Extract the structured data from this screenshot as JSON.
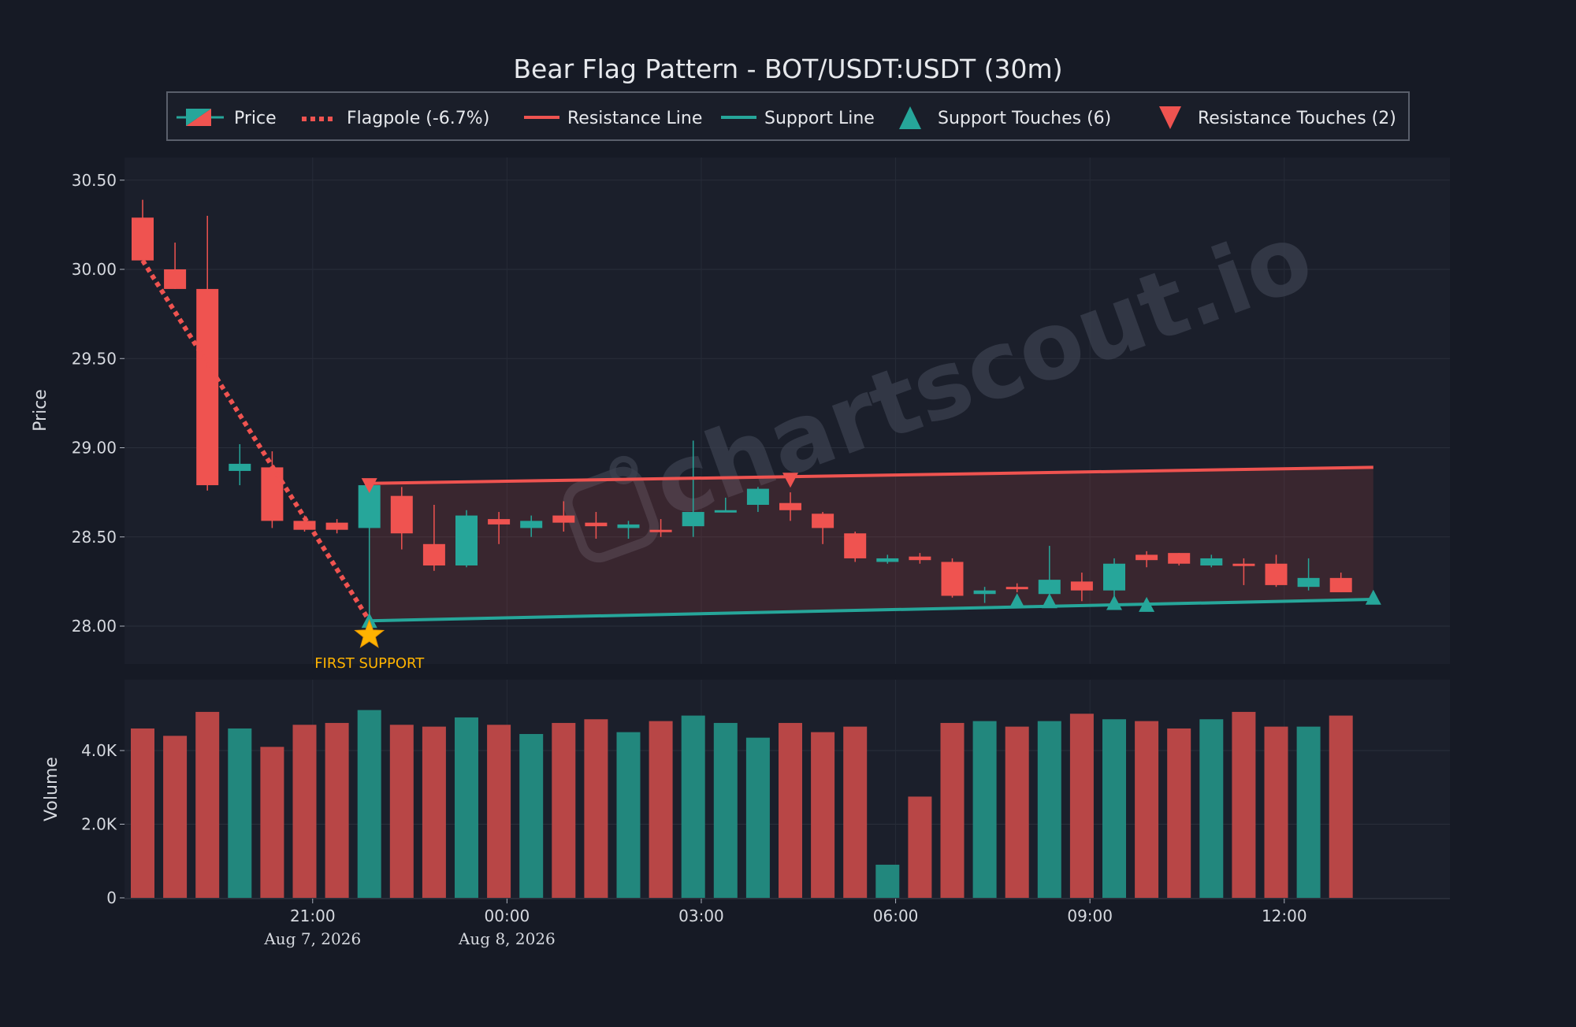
{
  "chart_data": {
    "type": "candlestick",
    "title": "Bear Flag Pattern - BOT/USDT:USDT (30m)",
    "watermark": "chartscout.io",
    "ylabel_price": "Price",
    "ylabel_volume": "Volume",
    "price_ylim": [
      27.8,
      30.6
    ],
    "volume_ylim": [
      0,
      5500
    ],
    "price_ticks": [
      "30.50",
      "30.00",
      "29.50",
      "29.00",
      "28.50",
      "28.00"
    ],
    "volume_ticks": [
      "4.0K",
      "2.0K",
      "0"
    ],
    "x_ticks": [
      {
        "label": "21:00",
        "date": "Aug 7, 2026",
        "index": 5.25
      },
      {
        "label": "00:00",
        "date": "Aug 8, 2026",
        "index": 11.25
      },
      {
        "label": "03:00",
        "date": "",
        "index": 17.25
      },
      {
        "label": "06:00",
        "date": "",
        "index": 23.25
      },
      {
        "label": "09:00",
        "date": "",
        "index": 29.25
      },
      {
        "label": "12:00",
        "date": "",
        "index": 35.25
      }
    ],
    "legend": {
      "price": "Price",
      "flagpole": "Flagpole (-6.7%)",
      "resistance": "Resistance Line",
      "support": "Support Line",
      "support_touches": "Support Touches (6)",
      "resistance_touches": "Resistance Touches (2)"
    },
    "annotation": "FIRST SUPPORT",
    "colors": {
      "up": "#26a69a",
      "down": "#ef5350",
      "up_volume": "#22877d",
      "down_volume": "#b84646",
      "star": "#ffb300",
      "background": "#161a25",
      "panel": "#1b1f2b",
      "text": "#d6d9df"
    },
    "candles": [
      {
        "o": 30.29,
        "h": 30.39,
        "l": 30.05,
        "c": 30.05,
        "v": 4600
      },
      {
        "o": 30.0,
        "h": 30.15,
        "l": 29.89,
        "c": 29.89,
        "v": 4400
      },
      {
        "o": 29.89,
        "h": 30.3,
        "l": 28.76,
        "c": 28.79,
        "v": 5050
      },
      {
        "o": 28.87,
        "h": 29.02,
        "l": 28.79,
        "c": 28.91,
        "v": 4600
      },
      {
        "o": 28.89,
        "h": 28.98,
        "l": 28.55,
        "c": 28.59,
        "v": 4100
      },
      {
        "o": 28.59,
        "h": 28.62,
        "l": 28.53,
        "c": 28.54,
        "v": 4700
      },
      {
        "o": 28.58,
        "h": 28.6,
        "l": 28.52,
        "c": 28.54,
        "v": 4750
      },
      {
        "o": 28.55,
        "h": 28.8,
        "l": 28.03,
        "c": 28.79,
        "v": 5100
      },
      {
        "o": 28.73,
        "h": 28.78,
        "l": 28.43,
        "c": 28.52,
        "v": 4700
      },
      {
        "o": 28.46,
        "h": 28.68,
        "l": 28.31,
        "c": 28.34,
        "v": 4650
      },
      {
        "o": 28.34,
        "h": 28.65,
        "l": 28.33,
        "c": 28.62,
        "v": 4900
      },
      {
        "o": 28.6,
        "h": 28.64,
        "l": 28.46,
        "c": 28.57,
        "v": 4700
      },
      {
        "o": 28.55,
        "h": 28.62,
        "l": 28.5,
        "c": 28.59,
        "v": 4450
      },
      {
        "o": 28.62,
        "h": 28.7,
        "l": 28.53,
        "c": 28.58,
        "v": 4750
      },
      {
        "o": 28.58,
        "h": 28.64,
        "l": 28.49,
        "c": 28.56,
        "v": 4850
      },
      {
        "o": 28.55,
        "h": 28.59,
        "l": 28.49,
        "c": 28.57,
        "v": 4500
      },
      {
        "o": 28.54,
        "h": 28.6,
        "l": 28.5,
        "c": 28.53,
        "v": 4800
      },
      {
        "o": 28.56,
        "h": 29.04,
        "l": 28.5,
        "c": 28.64,
        "v": 4950
      },
      {
        "o": 28.65,
        "h": 28.72,
        "l": 28.64,
        "c": 28.65,
        "v": 4750
      },
      {
        "o": 28.68,
        "h": 28.78,
        "l": 28.64,
        "c": 28.77,
        "v": 4350
      },
      {
        "o": 28.69,
        "h": 28.75,
        "l": 28.59,
        "c": 28.65,
        "v": 4750
      },
      {
        "o": 28.63,
        "h": 28.64,
        "l": 28.46,
        "c": 28.55,
        "v": 4500
      },
      {
        "o": 28.52,
        "h": 28.53,
        "l": 28.36,
        "c": 28.38,
        "v": 4650
      },
      {
        "o": 28.36,
        "h": 28.4,
        "l": 28.35,
        "c": 28.38,
        "v": 900
      },
      {
        "o": 28.39,
        "h": 28.41,
        "l": 28.35,
        "c": 28.37,
        "v": 2750
      },
      {
        "o": 28.36,
        "h": 28.38,
        "l": 28.16,
        "c": 28.17,
        "v": 4750
      },
      {
        "o": 28.18,
        "h": 28.22,
        "l": 28.13,
        "c": 28.2,
        "v": 4800
      },
      {
        "o": 28.22,
        "h": 28.24,
        "l": 28.19,
        "c": 28.21,
        "v": 4650
      },
      {
        "o": 28.18,
        "h": 28.45,
        "l": 28.17,
        "c": 28.26,
        "v": 4800
      },
      {
        "o": 28.25,
        "h": 28.3,
        "l": 28.14,
        "c": 28.2,
        "v": 5000
      },
      {
        "o": 28.2,
        "h": 28.38,
        "l": 28.13,
        "c": 28.35,
        "v": 4850
      },
      {
        "o": 28.4,
        "h": 28.42,
        "l": 28.33,
        "c": 28.37,
        "v": 4800
      },
      {
        "o": 28.41,
        "h": 28.41,
        "l": 28.34,
        "c": 28.35,
        "v": 4600
      },
      {
        "o": 28.34,
        "h": 28.4,
        "l": 28.33,
        "c": 28.38,
        "v": 4850
      },
      {
        "o": 28.35,
        "h": 28.38,
        "l": 28.23,
        "c": 28.34,
        "v": 5050
      },
      {
        "o": 28.35,
        "h": 28.4,
        "l": 28.22,
        "c": 28.23,
        "v": 4650
      },
      {
        "o": 28.22,
        "h": 28.38,
        "l": 28.2,
        "c": 28.27,
        "v": 4650
      },
      {
        "o": 28.27,
        "h": 28.3,
        "l": 28.19,
        "c": 28.19,
        "v": 4950
      }
    ],
    "flagpole": {
      "from": [
        0,
        30.05
      ],
      "to": [
        7,
        28.03
      ]
    },
    "resistance_line": {
      "from": [
        7,
        28.8
      ],
      "to": [
        38,
        28.89
      ]
    },
    "support_line": {
      "from": [
        7,
        28.03
      ],
      "to": [
        38,
        28.15
      ]
    },
    "support_touches": [
      {
        "x": 7,
        "y": 28.03
      },
      {
        "x": 27,
        "y": 28.14
      },
      {
        "x": 28,
        "y": 28.14
      },
      {
        "x": 30,
        "y": 28.13
      },
      {
        "x": 31,
        "y": 28.12
      },
      {
        "x": 38,
        "y": 28.16
      }
    ],
    "resistance_touches": [
      {
        "x": 7,
        "y": 28.79
      },
      {
        "x": 20,
        "y": 28.82
      }
    ],
    "first_support": {
      "x": 7,
      "y": 27.95
    }
  }
}
